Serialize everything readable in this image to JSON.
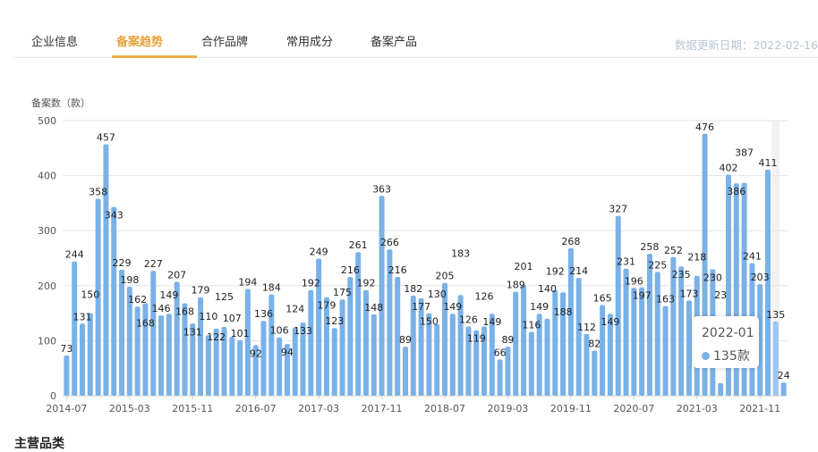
{
  "tabs": [
    {
      "label": "企业信息",
      "active": false
    },
    {
      "label": "备案趋势",
      "active": true
    },
    {
      "label": "合作品牌",
      "active": false
    },
    {
      "label": "常用成分",
      "active": false
    },
    {
      "label": "备案产品",
      "active": false
    }
  ],
  "update_date": "数据更新日期：2022-02-16",
  "section_title": "主营品类",
  "tooltip": {
    "title": "2022-01",
    "value": "135款"
  },
  "colors": {
    "bar": "#7ab2e8",
    "bar_active": "#9cc6f0",
    "accent": "#e8a33d"
  },
  "chart_data": {
    "type": "bar",
    "title": "",
    "ylabel": "备案数（款）",
    "xlabel": "",
    "ylim": [
      0,
      500
    ],
    "yticks": [
      0,
      100,
      200,
      300,
      400,
      500
    ],
    "grid": true,
    "start_month": "2014-07",
    "xtick_labels": [
      {
        "index": 0,
        "label": "2014-07"
      },
      {
        "index": 8,
        "label": "2015-03"
      },
      {
        "index": 16,
        "label": "2015-11"
      },
      {
        "index": 24,
        "label": "2016-07"
      },
      {
        "index": 32,
        "label": "2017-03"
      },
      {
        "index": 40,
        "label": "2017-11"
      },
      {
        "index": 48,
        "label": "2018-07"
      },
      {
        "index": 56,
        "label": "2019-03"
      },
      {
        "index": 64,
        "label": "2019-11"
      },
      {
        "index": 72,
        "label": "2020-07"
      },
      {
        "index": 80,
        "label": "2021-03"
      },
      {
        "index": 88,
        "label": "2021-11"
      }
    ],
    "highlight_index": 90,
    "values": [
      73,
      244,
      131,
      150,
      358,
      457,
      343,
      229,
      198,
      162,
      168,
      227,
      146,
      149,
      207,
      168,
      131,
      179,
      110,
      122,
      125,
      107,
      101,
      194,
      92,
      136,
      184,
      106,
      94,
      124,
      133,
      192,
      249,
      179,
      123,
      175,
      216,
      261,
      192,
      148,
      363,
      266,
      216,
      89,
      182,
      177,
      150,
      130,
      205,
      149,
      183,
      126,
      119,
      126,
      149,
      66,
      89,
      189,
      201,
      116,
      149,
      140,
      192,
      188,
      268,
      214,
      112,
      82,
      165,
      149,
      327,
      231,
      196,
      197,
      258,
      225,
      163,
      252,
      235,
      173,
      218,
      476,
      230,
      23,
      402,
      386,
      387,
      241,
      203,
      411,
      135,
      24
    ]
  }
}
